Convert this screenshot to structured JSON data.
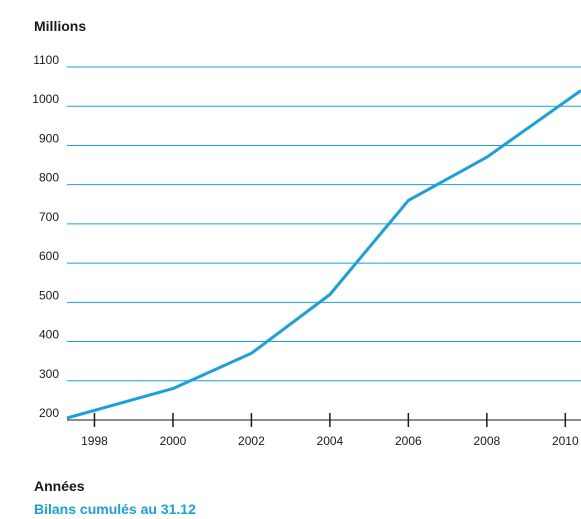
{
  "chart_data": {
    "type": "line",
    "ylabel": "Millions",
    "xlabel": "Années",
    "ylim": [
      200,
      1100
    ],
    "yticks": [
      200,
      300,
      400,
      500,
      600,
      700,
      800,
      900,
      1000,
      1100
    ],
    "xticks": [
      1998,
      2000,
      2002,
      2004,
      2006,
      2008,
      2010
    ],
    "grid": true,
    "legend_position": "bottom-left",
    "series": [
      {
        "name": "Bilans cumulés au 31.12",
        "color": "#1aa0dc",
        "x": [
          1997.3,
          2000,
          2002,
          2004,
          2006,
          2008,
          2010.4
        ],
        "values": [
          205,
          280,
          370,
          520,
          760,
          870,
          1040
        ]
      }
    ]
  }
}
